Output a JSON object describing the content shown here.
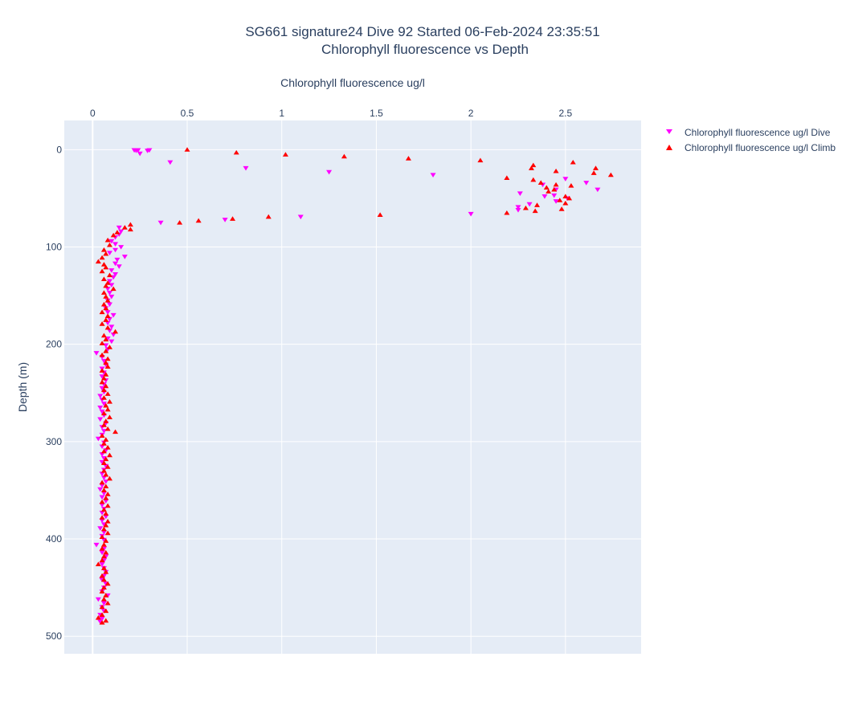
{
  "chart_data": {
    "type": "scatter",
    "title": "SG661 signature24 Dive 92 Started 06-Feb-2024 23:35:51",
    "subtitle": "Chlorophyll fluorescence vs Depth",
    "xlabel": "Chlorophyll fluorescence ug/l",
    "ylabel": "Depth (m)",
    "xlim": [
      -0.15,
      2.9
    ],
    "ylim": [
      518,
      -30
    ],
    "x_ticks": [
      "0",
      "0.5",
      "1",
      "1.5",
      "2",
      "2.5"
    ],
    "y_ticks": [
      "0",
      "100",
      "200",
      "300",
      "400",
      "500"
    ],
    "x_axis_position": "top",
    "y_reversed": true,
    "grid": true,
    "legend_position": "top-right",
    "series": [
      {
        "name": "Chlorophyll fluorescence ug/l Dive",
        "marker": "triangle-down",
        "color": "#ff00ff",
        "points": [
          [
            0.22,
            0.5
          ],
          [
            0.24,
            0.5
          ],
          [
            0.23,
            1
          ],
          [
            0.3,
            0.5
          ],
          [
            0.29,
            1
          ],
          [
            0.25,
            4
          ],
          [
            0.41,
            13
          ],
          [
            0.81,
            19
          ],
          [
            1.25,
            23
          ],
          [
            1.8,
            26
          ],
          [
            2.5,
            30
          ],
          [
            2.61,
            34
          ],
          [
            2.38,
            36
          ],
          [
            2.45,
            41
          ],
          [
            2.67,
            41
          ],
          [
            2.26,
            45
          ],
          [
            2.44,
            47
          ],
          [
            2.39,
            48
          ],
          [
            2.51,
            50
          ],
          [
            2.45,
            53
          ],
          [
            2.31,
            56
          ],
          [
            2.25,
            59
          ],
          [
            2.25,
            62
          ],
          [
            2.0,
            66
          ],
          [
            1.1,
            69
          ],
          [
            0.7,
            72
          ],
          [
            0.36,
            75
          ],
          [
            0.14,
            80
          ],
          [
            0.15,
            84
          ],
          [
            0.14,
            87
          ],
          [
            0.12,
            90
          ],
          [
            0.1,
            94
          ],
          [
            0.12,
            97
          ],
          [
            0.15,
            100
          ],
          [
            0.12,
            103
          ],
          [
            0.09,
            106
          ],
          [
            0.17,
            110
          ],
          [
            0.13,
            113
          ],
          [
            0.12,
            117
          ],
          [
            0.14,
            120
          ],
          [
            0.1,
            124
          ],
          [
            0.12,
            128
          ],
          [
            0.11,
            131
          ],
          [
            0.09,
            135
          ],
          [
            0.1,
            139
          ],
          [
            0.08,
            143
          ],
          [
            0.09,
            147
          ],
          [
            0.1,
            151
          ],
          [
            0.08,
            155
          ],
          [
            0.09,
            159
          ],
          [
            0.07,
            163
          ],
          [
            0.08,
            167
          ],
          [
            0.11,
            170
          ],
          [
            0.09,
            174
          ],
          [
            0.08,
            178
          ],
          [
            0.1,
            182
          ],
          [
            0.09,
            186
          ],
          [
            0.11,
            190
          ],
          [
            0.08,
            194
          ],
          [
            0.1,
            197
          ],
          [
            0.07,
            201
          ],
          [
            0.08,
            205
          ],
          [
            0.02,
            209
          ],
          [
            0.05,
            213
          ],
          [
            0.06,
            217
          ],
          [
            0.07,
            221
          ],
          [
            0.05,
            225
          ],
          [
            0.06,
            229
          ],
          [
            0.05,
            233
          ],
          [
            0.07,
            237
          ],
          [
            0.06,
            241
          ],
          [
            0.05,
            245
          ],
          [
            0.06,
            249
          ],
          [
            0.04,
            253
          ],
          [
            0.05,
            257
          ],
          [
            0.06,
            261
          ],
          [
            0.04,
            265
          ],
          [
            0.05,
            269
          ],
          [
            0.06,
            273
          ],
          [
            0.04,
            277
          ],
          [
            0.07,
            281
          ],
          [
            0.05,
            285
          ],
          [
            0.06,
            289
          ],
          [
            0.05,
            293
          ],
          [
            0.03,
            297
          ],
          [
            0.06,
            301
          ],
          [
            0.05,
            305
          ],
          [
            0.07,
            309
          ],
          [
            0.05,
            313
          ],
          [
            0.06,
            317
          ],
          [
            0.05,
            321
          ],
          [
            0.07,
            325
          ],
          [
            0.06,
            329
          ],
          [
            0.05,
            333
          ],
          [
            0.06,
            337
          ],
          [
            0.07,
            341
          ],
          [
            0.05,
            345
          ],
          [
            0.04,
            349
          ],
          [
            0.06,
            353
          ],
          [
            0.05,
            357
          ],
          [
            0.07,
            361
          ],
          [
            0.05,
            365
          ],
          [
            0.06,
            369
          ],
          [
            0.05,
            373
          ],
          [
            0.07,
            377
          ],
          [
            0.05,
            381
          ],
          [
            0.06,
            385
          ],
          [
            0.04,
            389
          ],
          [
            0.06,
            393
          ],
          [
            0.05,
            397
          ],
          [
            0.06,
            401
          ],
          [
            0.02,
            406
          ],
          [
            0.06,
            410
          ],
          [
            0.05,
            414
          ],
          [
            0.07,
            418
          ],
          [
            0.06,
            422
          ],
          [
            0.05,
            426
          ],
          [
            0.06,
            430
          ],
          [
            0.07,
            434
          ],
          [
            0.06,
            438
          ],
          [
            0.05,
            442
          ],
          [
            0.07,
            446
          ],
          [
            0.06,
            450
          ],
          [
            0.05,
            454
          ],
          [
            0.08,
            458
          ],
          [
            0.03,
            462
          ],
          [
            0.06,
            466
          ],
          [
            0.05,
            470
          ],
          [
            0.06,
            474
          ],
          [
            0.04,
            478
          ],
          [
            0.05,
            482
          ],
          [
            0.04,
            485
          ]
        ]
      },
      {
        "name": "Chlorophyll fluorescence ug/l Climb",
        "marker": "triangle-up",
        "color": "#ff0000",
        "points": [
          [
            0.5,
            0
          ],
          [
            0.76,
            3
          ],
          [
            1.02,
            5
          ],
          [
            1.33,
            7
          ],
          [
            1.67,
            9
          ],
          [
            2.05,
            11
          ],
          [
            2.54,
            13
          ],
          [
            2.33,
            16
          ],
          [
            2.32,
            19
          ],
          [
            2.66,
            19
          ],
          [
            2.45,
            22
          ],
          [
            2.65,
            24
          ],
          [
            2.74,
            26
          ],
          [
            2.19,
            29
          ],
          [
            2.33,
            31
          ],
          [
            2.37,
            34
          ],
          [
            2.45,
            36
          ],
          [
            2.53,
            37
          ],
          [
            2.4,
            39
          ],
          [
            2.44,
            41
          ],
          [
            2.41,
            43
          ],
          [
            2.5,
            48
          ],
          [
            2.52,
            50
          ],
          [
            2.47,
            52
          ],
          [
            2.5,
            55
          ],
          [
            2.35,
            57
          ],
          [
            2.29,
            60
          ],
          [
            2.48,
            61
          ],
          [
            2.34,
            63
          ],
          [
            2.19,
            65
          ],
          [
            1.52,
            67
          ],
          [
            0.93,
            69
          ],
          [
            0.74,
            71
          ],
          [
            0.56,
            73
          ],
          [
            0.46,
            75
          ],
          [
            0.2,
            77
          ],
          [
            0.17,
            80
          ],
          [
            0.2,
            82
          ],
          [
            0.13,
            85
          ],
          [
            0.11,
            88
          ],
          [
            0.08,
            93
          ],
          [
            0.09,
            98
          ],
          [
            0.06,
            103
          ],
          [
            0.07,
            107
          ],
          [
            0.05,
            111
          ],
          [
            0.03,
            115
          ],
          [
            0.06,
            118
          ],
          [
            0.07,
            121
          ],
          [
            0.05,
            125
          ],
          [
            0.09,
            129
          ],
          [
            0.06,
            133
          ],
          [
            0.08,
            137
          ],
          [
            0.07,
            140
          ],
          [
            0.11,
            143
          ],
          [
            0.06,
            147
          ],
          [
            0.07,
            151
          ],
          [
            0.08,
            155
          ],
          [
            0.06,
            159
          ],
          [
            0.07,
            163
          ],
          [
            0.05,
            167
          ],
          [
            0.08,
            171
          ],
          [
            0.07,
            175
          ],
          [
            0.05,
            179
          ],
          [
            0.08,
            183
          ],
          [
            0.12,
            187
          ],
          [
            0.06,
            191
          ],
          [
            0.07,
            195
          ],
          [
            0.05,
            199
          ],
          [
            0.09,
            203
          ],
          [
            0.07,
            207
          ],
          [
            0.05,
            211
          ],
          [
            0.08,
            215
          ],
          [
            0.07,
            219
          ],
          [
            0.08,
            223
          ],
          [
            0.05,
            227
          ],
          [
            0.07,
            231
          ],
          [
            0.06,
            235
          ],
          [
            0.05,
            239
          ],
          [
            0.07,
            243
          ],
          [
            0.06,
            247
          ],
          [
            0.08,
            251
          ],
          [
            0.06,
            255
          ],
          [
            0.09,
            259
          ],
          [
            0.07,
            263
          ],
          [
            0.08,
            267
          ],
          [
            0.06,
            271
          ],
          [
            0.09,
            275
          ],
          [
            0.07,
            279
          ],
          [
            0.06,
            283
          ],
          [
            0.08,
            287
          ],
          [
            0.12,
            290
          ],
          [
            0.05,
            294
          ],
          [
            0.07,
            298
          ],
          [
            0.06,
            302
          ],
          [
            0.08,
            306
          ],
          [
            0.06,
            310
          ],
          [
            0.09,
            314
          ],
          [
            0.07,
            318
          ],
          [
            0.06,
            322
          ],
          [
            0.08,
            326
          ],
          [
            0.06,
            330
          ],
          [
            0.07,
            334
          ],
          [
            0.09,
            338
          ],
          [
            0.05,
            342
          ],
          [
            0.07,
            346
          ],
          [
            0.06,
            350
          ],
          [
            0.08,
            354
          ],
          [
            0.07,
            358
          ],
          [
            0.05,
            362
          ],
          [
            0.08,
            366
          ],
          [
            0.06,
            370
          ],
          [
            0.07,
            374
          ],
          [
            0.05,
            378
          ],
          [
            0.08,
            382
          ],
          [
            0.07,
            386
          ],
          [
            0.06,
            390
          ],
          [
            0.08,
            394
          ],
          [
            0.05,
            398
          ],
          [
            0.07,
            402
          ],
          [
            0.06,
            406
          ],
          [
            0.05,
            410
          ],
          [
            0.07,
            414
          ],
          [
            0.06,
            418
          ],
          [
            0.05,
            422
          ],
          [
            0.03,
            426
          ],
          [
            0.06,
            430
          ],
          [
            0.07,
            434
          ],
          [
            0.05,
            438
          ],
          [
            0.06,
            442
          ],
          [
            0.08,
            446
          ],
          [
            0.06,
            450
          ],
          [
            0.05,
            454
          ],
          [
            0.07,
            458
          ],
          [
            0.06,
            462
          ],
          [
            0.08,
            466
          ],
          [
            0.05,
            470
          ],
          [
            0.07,
            474
          ],
          [
            0.05,
            478
          ],
          [
            0.03,
            481
          ],
          [
            0.07,
            484
          ],
          [
            0.05,
            486
          ]
        ]
      }
    ]
  }
}
